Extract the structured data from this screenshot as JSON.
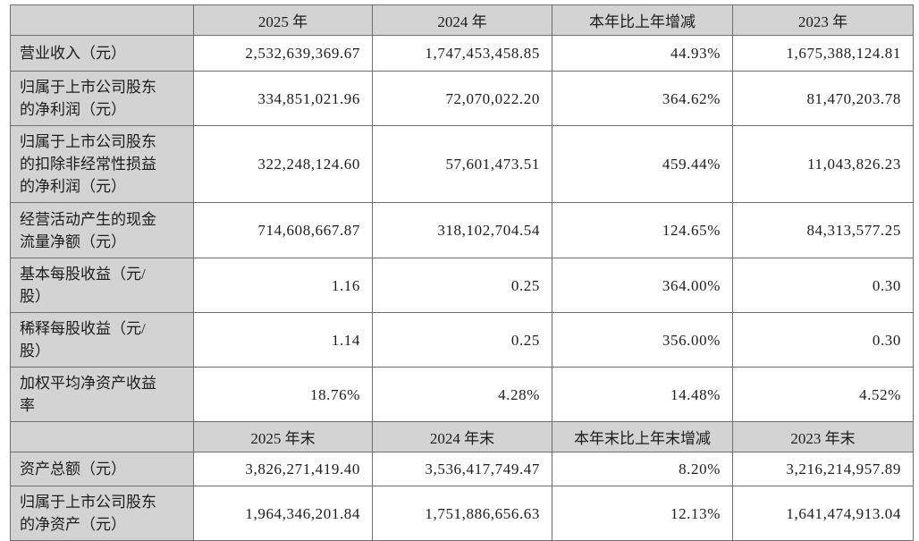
{
  "table": {
    "header_period": {
      "corner": "",
      "col_2025": "2025 年",
      "col_2024": "2024 年",
      "col_change": "本年比上年增减",
      "col_2023": "2023 年"
    },
    "rows_period": [
      {
        "label": "营业收入（元）",
        "values": [
          "2,532,639,369.67",
          "1,747,453,458.85",
          "44.93%",
          "1,675,388,124.81"
        ]
      },
      {
        "label": "归属于上市公司股东的净利润（元）",
        "values": [
          "334,851,021.96",
          "72,070,022.20",
          "364.62%",
          "81,470,203.78"
        ]
      },
      {
        "label": "归属于上市公司股东的扣除非经常性损益的净利润（元）",
        "values": [
          "322,248,124.60",
          "57,601,473.51",
          "459.44%",
          "11,043,826.23"
        ]
      },
      {
        "label": "经营活动产生的现金流量净额（元）",
        "values": [
          "714,608,667.87",
          "318,102,704.54",
          "124.65%",
          "84,313,577.25"
        ]
      },
      {
        "label": "基本每股收益（元/股）",
        "values": [
          "1.16",
          "0.25",
          "364.00%",
          "0.30"
        ]
      },
      {
        "label": "稀释每股收益（元/股）",
        "values": [
          "1.14",
          "0.25",
          "356.00%",
          "0.30"
        ]
      },
      {
        "label": "加权平均净资产收益率",
        "values": [
          "18.76%",
          "4.28%",
          "14.48%",
          "4.52%"
        ]
      }
    ],
    "header_eoy": {
      "corner": "",
      "col_2025": "2025 年末",
      "col_2024": "2024 年末",
      "col_change": "本年末比上年末增减",
      "col_2023": "2023 年末"
    },
    "rows_eoy": [
      {
        "label": "资产总额（元）",
        "values": [
          "3,826,271,419.40",
          "3,536,417,749.47",
          "8.20%",
          "3,216,214,957.89"
        ]
      },
      {
        "label": "归属于上市公司股东的净资产（元）",
        "values": [
          "1,964,346,201.84",
          "1,751,886,656.63",
          "12.13%",
          "1,641,474,913.04"
        ]
      }
    ],
    "colors": {
      "header_bg": "#d3d3d3",
      "label_bg": "#d3d3d3",
      "border_inner": "#6e6e6e",
      "border_outer": "#474747",
      "text": "#1c1c1c"
    }
  }
}
